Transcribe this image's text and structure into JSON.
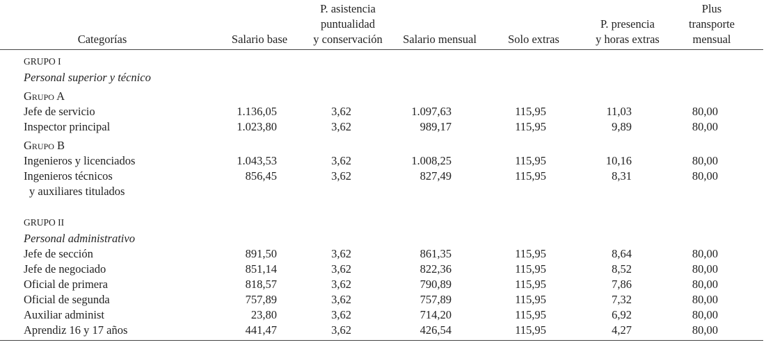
{
  "header": {
    "columns": [
      [
        "Categorías"
      ],
      [
        "Salario base"
      ],
      [
        "P. asistencia",
        "puntualidad",
        "y conservación"
      ],
      [
        "Salario mensual"
      ],
      [
        "Solo extras"
      ],
      [
        "P. presencia",
        "y horas extras"
      ],
      [
        "Plus",
        "transporte",
        "mensual"
      ]
    ]
  },
  "groups": [
    {
      "title": "GRUPO I",
      "subtitle": "Personal superior y técnico",
      "subgroups": [
        {
          "title": "Grupo A",
          "rows": [
            {
              "label": [
                "Jefe de servicio"
              ],
              "values": [
                "1.136,05",
                "3,62",
                "1.097,63",
                "115,95",
                "11,03",
                "80,00"
              ]
            },
            {
              "label": [
                "Inspector principal"
              ],
              "values": [
                "1.023,80",
                "3,62",
                "989,17",
                "115,95",
                "9,89",
                "80,00"
              ]
            }
          ]
        },
        {
          "title": "Grupo B",
          "rows": [
            {
              "label": [
                "Ingenieros y licenciados"
              ],
              "values": [
                "1.043,53",
                "3,62",
                "1.008,25",
                "115,95",
                "10,16",
                "80,00"
              ]
            },
            {
              "label": [
                "Ingenieros técnicos",
                "y auxiliares titulados"
              ],
              "values": [
                "856,45",
                "3,62",
                "827,49",
                "115,95",
                "8,31",
                "80,00"
              ]
            }
          ]
        }
      ]
    },
    {
      "title": "GRUPO II",
      "subtitle": "Personal administrativo",
      "subgroups": [
        {
          "rows": [
            {
              "label": [
                "Jefe de sección"
              ],
              "values": [
                "891,50",
                "3,62",
                "861,35",
                "115,95",
                "8,64",
                "80,00"
              ]
            },
            {
              "label": [
                "Jefe de negociado"
              ],
              "values": [
                "851,14",
                "3,62",
                "822,36",
                "115,95",
                "8,52",
                "80,00"
              ]
            },
            {
              "label": [
                "Oficial de primera"
              ],
              "values": [
                "818,57",
                "3,62",
                "790,89",
                "115,95",
                "7,86",
                "80,00"
              ]
            },
            {
              "label": [
                "Oficial de segunda"
              ],
              "values": [
                "757,89",
                "3,62",
                "757,89",
                "115,95",
                "7,32",
                "80,00"
              ]
            },
            {
              "label": [
                "Auxiliar administ"
              ],
              "values": [
                "23,80",
                "3,62",
                "714,20",
                "115,95",
                "6,92",
                "80,00"
              ]
            },
            {
              "label": [
                "Aprendiz 16 y 17 años"
              ],
              "values": [
                "441,47",
                "3,62",
                "426,54",
                "115,95",
                "4,27",
                "80,00"
              ]
            }
          ]
        }
      ]
    }
  ]
}
